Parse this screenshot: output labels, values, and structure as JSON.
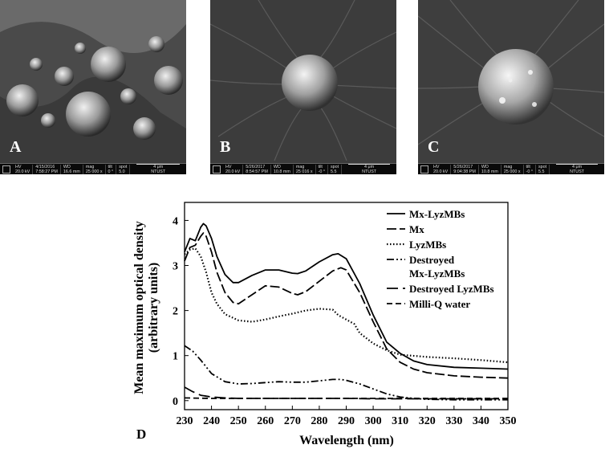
{
  "panels": [
    {
      "letter": "A",
      "hv": "HV",
      "kv": "20.0 kV",
      "date": "4/15/2016",
      "time": "7:58:27 PM",
      "wd_label": "WD",
      "wd": "16.6 mm",
      "mag_label": "mag",
      "mag": "25 000 x",
      "tilt_label": "tilt",
      "tilt": "0 °",
      "spot_label": "spot",
      "spot": "5.0",
      "scale": "4 μm",
      "inst": "NTUST"
    },
    {
      "letter": "B",
      "hv": "HV",
      "kv": "20.0 kV",
      "date": "5/26/2017",
      "time": "8:54:57 PM",
      "wd_label": "WD",
      "wd": "10.8 mm",
      "mag_label": "mag",
      "mag": "25 016 x",
      "tilt_label": "tilt",
      "tilt": "-0 °",
      "spot_label": "spot",
      "spot": "5.5",
      "scale": "4 μm",
      "inst": "NTUST"
    },
    {
      "letter": "C",
      "hv": "HV",
      "kv": "20.0 kV",
      "date": "5/26/2017",
      "time": "9:04:38 PM",
      "wd_label": "WD",
      "wd": "10.8 mm",
      "mag_label": "mag",
      "mag": "25 000 x",
      "tilt_label": "tilt",
      "tilt": "-0 °",
      "spot_label": "spot",
      "spot": "5.5",
      "scale": "4 μm",
      "inst": "NTUST"
    }
  ],
  "chart_data": {
    "type": "line",
    "panel_label": "D",
    "xlabel": "Wavelength (nm)",
    "ylabel_line1": "Mean maximum optical density",
    "ylabel_line2": "(arbitrary units)",
    "xlim": [
      230,
      350
    ],
    "ylim": [
      -0.2,
      4.4
    ],
    "xticks": [
      230,
      240,
      250,
      260,
      270,
      280,
      290,
      300,
      310,
      320,
      330,
      340,
      350
    ],
    "yticks": [
      0,
      1,
      2,
      3,
      4
    ],
    "grid": false,
    "legend_position": "top-right",
    "series": [
      {
        "name": "Mx-LyzMBs",
        "dash": "solid",
        "x": [
          230,
          232,
          234,
          236,
          237,
          238,
          240,
          242,
          245,
          248,
          250,
          255,
          260,
          265,
          270,
          272,
          275,
          280,
          285,
          287,
          290,
          295,
          300,
          305,
          310,
          315,
          320,
          330,
          340,
          350
        ],
        "y": [
          3.3,
          3.6,
          3.55,
          3.85,
          3.93,
          3.88,
          3.6,
          3.2,
          2.8,
          2.62,
          2.62,
          2.78,
          2.9,
          2.9,
          2.83,
          2.82,
          2.88,
          3.08,
          3.24,
          3.26,
          3.15,
          2.6,
          1.9,
          1.3,
          1.05,
          0.88,
          0.8,
          0.74,
          0.72,
          0.7
        ]
      },
      {
        "name": "Mx",
        "dash": "long",
        "x": [
          230,
          232,
          234,
          236,
          237,
          238,
          240,
          242,
          245,
          248,
          250,
          255,
          260,
          265,
          270,
          272,
          275,
          280,
          285,
          288,
          290,
          295,
          300,
          305,
          310,
          315,
          320,
          330,
          340,
          350
        ],
        "y": [
          3.1,
          3.4,
          3.45,
          3.65,
          3.72,
          3.65,
          3.3,
          2.85,
          2.4,
          2.18,
          2.15,
          2.35,
          2.55,
          2.52,
          2.38,
          2.35,
          2.42,
          2.65,
          2.88,
          2.95,
          2.9,
          2.4,
          1.75,
          1.15,
          0.85,
          0.7,
          0.62,
          0.55,
          0.52,
          0.5
        ]
      },
      {
        "name": "LyzMBs",
        "dash": "dot",
        "x": [
          230,
          232,
          234,
          236,
          238,
          240,
          242,
          245,
          250,
          255,
          260,
          265,
          270,
          275,
          280,
          285,
          287,
          290,
          293,
          295,
          300,
          305,
          310,
          320,
          330,
          340,
          350
        ],
        "y": [
          3.25,
          3.35,
          3.38,
          3.2,
          2.85,
          2.4,
          2.15,
          1.92,
          1.78,
          1.75,
          1.8,
          1.87,
          1.93,
          2.0,
          2.04,
          2.02,
          1.9,
          1.8,
          1.7,
          1.5,
          1.27,
          1.12,
          1.02,
          0.97,
          0.94,
          0.9,
          0.85
        ]
      },
      {
        "name": "Destroyed Mx-LyzMBs",
        "label_line1": "Destroyed",
        "label_line2": "Mx-LyzMBs",
        "dash": "dashdotdot",
        "x": [
          230,
          233,
          236,
          240,
          245,
          250,
          255,
          260,
          265,
          270,
          275,
          280,
          285,
          288,
          290,
          295,
          300,
          305,
          310,
          315,
          320,
          330,
          340,
          350
        ],
        "y": [
          1.22,
          1.1,
          0.9,
          0.6,
          0.42,
          0.37,
          0.38,
          0.4,
          0.42,
          0.41,
          0.41,
          0.44,
          0.47,
          0.47,
          0.45,
          0.37,
          0.26,
          0.15,
          0.08,
          0.05,
          0.03,
          0.02,
          0.02,
          0.02
        ]
      },
      {
        "name": "Destroyed LyzMBs",
        "dash": "longdash",
        "x": [
          230,
          233,
          236,
          240,
          245,
          250,
          260,
          270,
          280,
          290,
          300,
          310,
          320,
          330,
          340,
          350
        ],
        "y": [
          0.3,
          0.2,
          0.12,
          0.08,
          0.06,
          0.05,
          0.05,
          0.05,
          0.05,
          0.05,
          0.04,
          0.04,
          0.04,
          0.04,
          0.04,
          0.04
        ]
      },
      {
        "name": "Milli-Q water",
        "dash": "dash",
        "x": [
          230,
          240,
          250,
          260,
          270,
          280,
          290,
          300,
          310,
          320,
          330,
          340,
          350
        ],
        "y": [
          0.06,
          0.05,
          0.05,
          0.05,
          0.05,
          0.05,
          0.05,
          0.05,
          0.05,
          0.05,
          0.05,
          0.05,
          0.05
        ]
      }
    ]
  }
}
